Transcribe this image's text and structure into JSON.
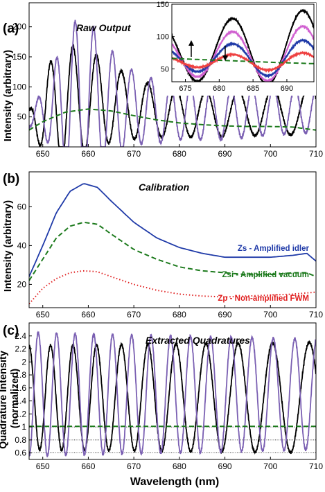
{
  "colors": {
    "black_series": "#000000",
    "purple_series": "#7a5fb2",
    "green_series": "#1c7a1c",
    "blue_series": "#1f3aa8",
    "red_series": "#e02020",
    "pink_series": "#d060d0",
    "thin_red_series": "#ee4040"
  },
  "x_axis_label": "Wavelength (nm)",
  "chart_data": [
    {
      "panel_label": "(a)",
      "type": "line",
      "title": "Raw Output",
      "ylabel": "Intensity (arbitrary)",
      "xlim": [
        647,
        710
      ],
      "ylim": [
        0,
        240
      ],
      "xticks": [
        650,
        660,
        670,
        680,
        690,
        700,
        710
      ],
      "yticks": [
        50,
        100,
        150,
        200
      ],
      "series": [
        {
          "color_key": "black_series",
          "style": "solid",
          "model": "oscillation",
          "base": [
            [
              647,
              45
            ],
            [
              655,
              72
            ],
            [
              660,
              78
            ],
            [
              665,
              72
            ],
            [
              675,
              58
            ],
            [
              690,
              55
            ],
            [
              700,
              60
            ],
            [
              710,
              62
            ]
          ],
          "amplitude": [
            [
              647,
              15
            ],
            [
              651,
              75
            ],
            [
              654,
              100
            ],
            [
              660,
              85
            ],
            [
              666,
              60
            ],
            [
              675,
              42
            ],
            [
              690,
              38
            ],
            [
              710,
              42
            ]
          ],
          "period": [
            [
              647,
              4.6
            ],
            [
              660,
              5.2
            ],
            [
              680,
              6.4
            ],
            [
              700,
              7.8
            ],
            [
              710,
              8.4
            ]
          ],
          "phase": 0
        },
        {
          "color_key": "purple_series",
          "style": "solid",
          "model": "oscillation",
          "base": [
            [
              647,
              45
            ],
            [
              655,
              72
            ],
            [
              660,
              80
            ],
            [
              665,
              72
            ],
            [
              675,
              58
            ],
            [
              690,
              55
            ],
            [
              700,
              60
            ],
            [
              710,
              62
            ]
          ],
          "amplitude": [
            [
              647,
              10
            ],
            [
              651,
              50
            ],
            [
              656,
              130
            ],
            [
              659,
              140
            ],
            [
              664,
              95
            ],
            [
              670,
              60
            ],
            [
              680,
              45
            ],
            [
              700,
              40
            ],
            [
              710,
              38
            ]
          ],
          "period": [
            [
              647,
              4.0
            ],
            [
              660,
              4.1
            ],
            [
              680,
              4.35
            ],
            [
              700,
              4.7
            ],
            [
              710,
              4.8
            ]
          ],
          "phase": 3.14
        },
        {
          "color_key": "green_series",
          "style": "dashed",
          "model": "curve",
          "points": [
            [
              647,
              28
            ],
            [
              650,
              42
            ],
            [
              655,
              58
            ],
            [
              660,
              63
            ],
            [
              665,
              60
            ],
            [
              670,
              52
            ],
            [
              675,
              45
            ],
            [
              680,
              40
            ],
            [
              685,
              37
            ],
            [
              690,
              35
            ],
            [
              695,
              34
            ],
            [
              700,
              34
            ],
            [
              705,
              33
            ],
            [
              710,
              28
            ]
          ]
        }
      ],
      "inset": {
        "xlim": [
          673,
          694
        ],
        "ylim": [
          30,
          150
        ],
        "xticks": [
          675,
          680,
          685,
          690
        ],
        "yticks": [
          50,
          100,
          150
        ],
        "annotations": [
          "up-arrow",
          "down-arrow"
        ],
        "series": [
          {
            "color_key": "black_series",
            "style": "solid",
            "model": "oscillation",
            "base": [
              [
                673,
                75
              ],
              [
                694,
                82
              ]
            ],
            "amplitude": [
              [
                673,
                42
              ],
              [
                694,
                60
              ]
            ],
            "period": [
              [
                673,
                10.4
              ],
              [
                694,
                10.4
              ]
            ],
            "phase": 0.9
          },
          {
            "color_key": "pink_series",
            "style": "solid",
            "model": "oscillation",
            "base": [
              [
                673,
                70
              ],
              [
                694,
                72
              ]
            ],
            "amplitude": [
              [
                673,
                30
              ],
              [
                694,
                45
              ]
            ],
            "period": [
              [
                673,
                10.4
              ],
              [
                694,
                10.4
              ]
            ],
            "phase": 0.9
          },
          {
            "color_key": "blue_series",
            "style": "solid",
            "model": "oscillation",
            "base": [
              [
                673,
                66
              ],
              [
                694,
                65
              ]
            ],
            "amplitude": [
              [
                673,
                18
              ],
              [
                694,
                30
              ]
            ],
            "period": [
              [
                673,
                10.4
              ],
              [
                694,
                10.4
              ]
            ],
            "phase": 0.9
          },
          {
            "color_key": "thin_red_series",
            "style": "solid",
            "model": "oscillation",
            "base": [
              [
                673,
                62
              ],
              [
                694,
                60
              ]
            ],
            "amplitude": [
              [
                673,
                8
              ],
              [
                694,
                15
              ]
            ],
            "period": [
              [
                673,
                10.4
              ],
              [
                694,
                10.4
              ]
            ],
            "phase": 0.9
          },
          {
            "color_key": "green_series",
            "style": "dashed",
            "model": "curve",
            "points": [
              [
                673,
                66
              ],
              [
                678,
                64
              ],
              [
                683,
                62
              ],
              [
                688,
                60
              ],
              [
                694,
                58
              ]
            ]
          }
        ]
      }
    },
    {
      "panel_label": "(b)",
      "type": "line",
      "title": "Calibration",
      "ylabel": "Intensity (arbitrary)",
      "xlim": [
        647,
        710
      ],
      "ylim": [
        8,
        78
      ],
      "xticks": [
        650,
        660,
        670,
        680,
        690,
        700,
        710
      ],
      "yticks": [
        20,
        40,
        60
      ],
      "legend": [
        {
          "text": "Zs - Amplified idler",
          "color_key": "blue_series"
        },
        {
          "text": "Zsi - Amplified vacuum",
          "color_key": "green_series"
        },
        {
          "text": "Zp - Non-amplified FWM",
          "color_key": "red_series"
        }
      ],
      "series": [
        {
          "name": "Zs - Amplified idler",
          "color_key": "blue_series",
          "style": "solid",
          "model": "curve",
          "points": [
            [
              647,
              24
            ],
            [
              650,
              40
            ],
            [
              653,
              57
            ],
            [
              656,
              68
            ],
            [
              659,
              72
            ],
            [
              662,
              70
            ],
            [
              665,
              63
            ],
            [
              670,
              52
            ],
            [
              675,
              44
            ],
            [
              680,
              39
            ],
            [
              685,
              36
            ],
            [
              690,
              34
            ],
            [
              695,
              34
            ],
            [
              700,
              34
            ],
            [
              705,
              35
            ],
            [
              708,
              36
            ],
            [
              710,
              32
            ]
          ]
        },
        {
          "name": "Zsi - Amplified vacuum",
          "color_key": "green_series",
          "style": "dashed",
          "model": "curve",
          "points": [
            [
              647,
              22
            ],
            [
              650,
              33
            ],
            [
              653,
              44
            ],
            [
              656,
              50
            ],
            [
              659,
              52
            ],
            [
              662,
              51
            ],
            [
              665,
              46
            ],
            [
              670,
              38
            ],
            [
              675,
              33
            ],
            [
              680,
              29
            ],
            [
              685,
              27
            ],
            [
              690,
              26
            ],
            [
              695,
              25
            ],
            [
              700,
              25
            ],
            [
              705,
              26
            ],
            [
              708,
              26
            ],
            [
              710,
              24
            ]
          ]
        },
        {
          "name": "Zp - Non-amplified FWM",
          "color_key": "red_series",
          "style": "dotted",
          "model": "curve",
          "points": [
            [
              647,
              10
            ],
            [
              650,
              18
            ],
            [
              653,
              23
            ],
            [
              656,
              26
            ],
            [
              659,
              27
            ],
            [
              662,
              26.5
            ],
            [
              665,
              24
            ],
            [
              670,
              20
            ],
            [
              675,
              17
            ],
            [
              680,
              15
            ],
            [
              685,
              14
            ],
            [
              690,
              13.5
            ],
            [
              695,
              14
            ],
            [
              700,
              14.5
            ],
            [
              705,
              15
            ],
            [
              710,
              16
            ]
          ]
        }
      ]
    },
    {
      "panel_label": "(c)",
      "type": "line",
      "title": "Extracted Quadratures",
      "ylabel": "Quadrature Intensity (normalized)",
      "xlim": [
        647,
        710
      ],
      "ylim": [
        0.5,
        2.6
      ],
      "xticks": [
        650,
        660,
        670,
        680,
        690,
        700,
        710
      ],
      "yticks": [
        0.6,
        0.8,
        1,
        1.2,
        1.4,
        1.6,
        1.8,
        2,
        2.2,
        2.4
      ],
      "reference_lines": [
        0.6,
        0.8,
        1.0
      ],
      "series": [
        {
          "color_key": "black_series",
          "style": "solid",
          "model": "oscillation",
          "base": [
            [
              647,
              1.45
            ],
            [
              710,
              1.45
            ]
          ],
          "amplitude": [
            [
              647,
              0.8
            ],
            [
              710,
              0.85
            ]
          ],
          "period": [
            [
              647,
              4.6
            ],
            [
              660,
              5.2
            ],
            [
              680,
              6.4
            ],
            [
              700,
              7.8
            ],
            [
              710,
              8.4
            ]
          ],
          "phase": 0
        },
        {
          "color_key": "purple_series",
          "style": "solid",
          "model": "oscillation",
          "base": [
            [
              647,
              1.5
            ],
            [
              710,
              1.5
            ]
          ],
          "amplitude": [
            [
              647,
              0.95
            ],
            [
              710,
              0.85
            ]
          ],
          "period": [
            [
              647,
              4.0
            ],
            [
              660,
              4.1
            ],
            [
              680,
              4.35
            ],
            [
              700,
              4.7
            ],
            [
              710,
              4.8
            ]
          ],
          "phase": 3.14
        },
        {
          "color_key": "green_series",
          "style": "dashed",
          "model": "curve",
          "points": [
            [
              647,
              1.01
            ],
            [
              710,
              1.01
            ]
          ]
        }
      ]
    }
  ]
}
